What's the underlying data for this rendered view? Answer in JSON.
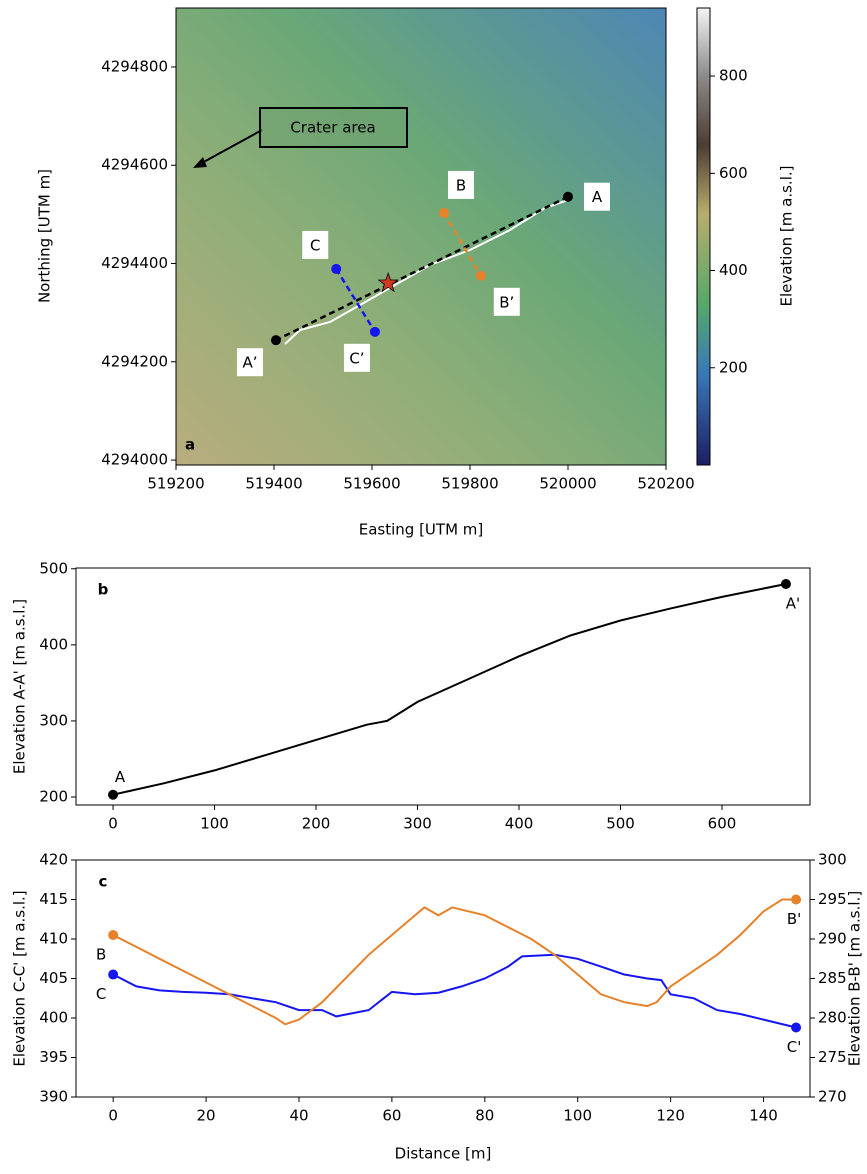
{
  "chart_data": [
    {
      "type": "map",
      "panel_label": "a",
      "xlabel": "Easting [UTM m]",
      "ylabel": "Northing [UTM m]",
      "xlim": [
        519200,
        520200
      ],
      "ylim": [
        4293990,
        4294920
      ],
      "xticks": [
        519200,
        519400,
        519600,
        519800,
        520000,
        520200
      ],
      "yticks": [
        4294000,
        4294200,
        4294400,
        4294600,
        4294800
      ],
      "annotation": "Crater area",
      "profiles": [
        {
          "color": "#000000",
          "x": [
            520000,
            519404
          ],
          "y": [
            4294536,
            4294244
          ],
          "labels": [
            "A",
            "A’"
          ]
        },
        {
          "color": "#e6822a",
          "x": [
            519747,
            519822
          ],
          "y": [
            4294503,
            4294375
          ],
          "labels": [
            "B",
            "B’"
          ]
        },
        {
          "color": "#1515f0",
          "x": [
            519527,
            519606
          ],
          "y": [
            4294389,
            4294261
          ],
          "labels": [
            "C",
            "C’"
          ]
        }
      ],
      "star": {
        "x": 519633,
        "y": 4294360,
        "color": "#d03a1f"
      },
      "colorbar": {
        "label": "Elevation [m a.s.l.]",
        "lim": [
          0,
          940
        ],
        "ticks": [
          200,
          400,
          600,
          800
        ]
      }
    },
    {
      "type": "line",
      "panel_label": "b",
      "ylabel": "Elevation A-A' [m a.s.l.]",
      "xlim": [
        -36.5,
        686.7
      ],
      "ylim": [
        189.5,
        501
      ],
      "xticks": [
        0,
        100,
        200,
        300,
        400,
        500,
        600
      ],
      "yticks": [
        200,
        300,
        400,
        500
      ],
      "series": [
        {
          "color": "#000000",
          "x": [
            0,
            50,
            100,
            150,
            200,
            250,
            270,
            300,
            350,
            400,
            450,
            500,
            550,
            600,
            663
          ],
          "values": [
            203,
            218,
            235,
            255,
            275,
            295,
            300,
            325,
            355,
            385,
            412,
            432,
            448,
            463,
            480
          ],
          "end_labels": [
            "A",
            "A'"
          ]
        }
      ]
    },
    {
      "type": "line",
      "panel_label": "c",
      "xlabel": "Distance [m]",
      "ylabel": "Elevation C-C' [m a.s.l.]",
      "y2label": "Elevation B-B' [m a.s.l.]",
      "xlim": [
        -8,
        150
      ],
      "ylim": [
        390,
        420
      ],
      "y2lim": [
        270,
        300
      ],
      "xticks": [
        0,
        20,
        40,
        60,
        80,
        100,
        120,
        140
      ],
      "yticks": [
        390,
        395,
        400,
        405,
        410,
        415,
        420
      ],
      "y2ticks": [
        270,
        275,
        280,
        285,
        290,
        295,
        300
      ],
      "series": [
        {
          "color": "#1515f0",
          "x": [
            0,
            5,
            10,
            15,
            20,
            25,
            30,
            35,
            40,
            45,
            48,
            55,
            60,
            65,
            70,
            75,
            80,
            85,
            88,
            95,
            100,
            105,
            110,
            115,
            118,
            120,
            125,
            130,
            135,
            140,
            147
          ],
          "values": [
            405.5,
            404,
            403.5,
            403.3,
            403.2,
            403,
            402.5,
            402,
            401,
            401,
            400.2,
            401,
            403.3,
            403,
            403.2,
            404,
            405,
            406.5,
            407.8,
            408,
            407.5,
            406.5,
            405.5,
            405,
            404.8,
            403,
            402.5,
            401,
            400.5,
            399.8,
            398.8
          ],
          "end_labels": [
            "C",
            "C'"
          ]
        },
        {
          "color": "#e6822a",
          "axis": "y2",
          "x": [
            0,
            5,
            10,
            15,
            20,
            25,
            30,
            35,
            37,
            40,
            45,
            50,
            55,
            60,
            65,
            67,
            70,
            73,
            80,
            85,
            90,
            95,
            100,
            105,
            110,
            115,
            117,
            120,
            125,
            130,
            135,
            140,
            144,
            147
          ],
          "values": [
            290.5,
            289,
            287.5,
            286,
            284.5,
            283,
            281.5,
            280,
            279.2,
            279.8,
            282,
            285,
            288,
            290.5,
            293,
            294,
            293,
            294,
            293,
            291.5,
            290,
            288,
            285.5,
            283,
            282,
            281.5,
            282,
            284,
            286,
            288,
            290.5,
            293.5,
            295,
            295
          ],
          "end_labels": [
            "B",
            "B'"
          ]
        }
      ]
    }
  ]
}
